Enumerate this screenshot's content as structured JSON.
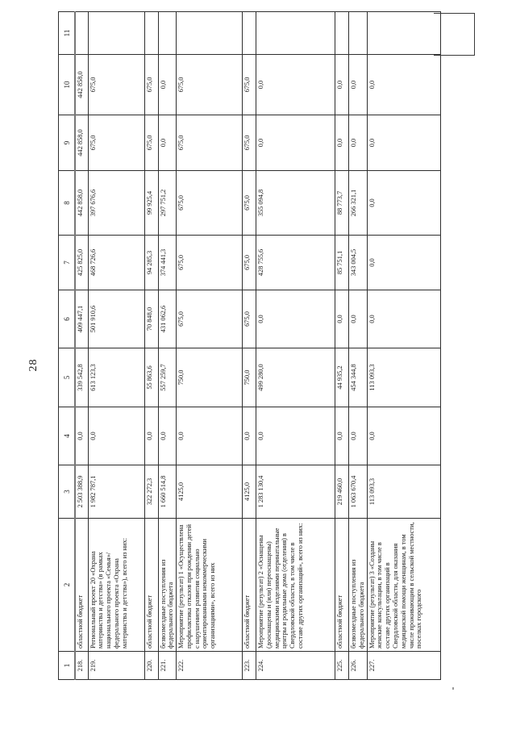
{
  "page": {
    "number": "28"
  },
  "table": {
    "col_headers": [
      "1",
      "2",
      "3",
      "4",
      "5",
      "6",
      "7",
      "8",
      "9",
      "10",
      "11"
    ],
    "rows": [
      {
        "num": "218.",
        "name": "областной бюджет",
        "v": [
          "2 503 388,9",
          "0,0",
          "339 542,8",
          "409 447,1",
          "425 825,0",
          "442 858,0",
          "442 858,0",
          "442 858,0",
          ""
        ]
      },
      {
        "num": "219.",
        "name": "Региональный проект 20 «Охрана материнства и детства» (в рамках национального проекта «Семья»/федерального проекта «Охрана материнства и детства»), всего из них:",
        "v": [
          "1 982 787,1",
          "0,0",
          "613 123,3",
          "501 910,6",
          "468 726,6",
          "397 676,6",
          "675,0",
          "675,0",
          ""
        ]
      },
      {
        "num": "220.",
        "name": "областной бюджет",
        "v": [
          "322 272,3",
          "0,0",
          "55 863,6",
          "70 848,0",
          "94 285,3",
          "99 925,4",
          "675,0",
          "675,0",
          ""
        ]
      },
      {
        "num": "221.",
        "name": "безвозмездные поступления из федерального бюджета",
        "v": [
          "1 660 514,8",
          "0,0",
          "557 259,7",
          "431 062,6",
          "374 441,3",
          "297 751,2",
          "0,0",
          "0,0",
          ""
        ]
      },
      {
        "num": "222.",
        "name": "Мероприятие (результат) 1 «Осуществлена профилактика отказов при рождении детей с нарушением развития социально ориентированными некоммерческими организациями», всего из них",
        "v": [
          "4125,0",
          "0,0",
          "750,0",
          "675,0",
          "675,0",
          "675,0",
          "675,0",
          "675,0",
          ""
        ]
      },
      {
        "num": "223.",
        "name": "областной бюджет",
        "v": [
          "4125,0",
          "0,0",
          "750,0",
          "675,0",
          "675,0",
          "675,0",
          "675,0",
          "675,0",
          ""
        ]
      },
      {
        "num": "224.",
        "name": "Мероприятие (результат) 2 «Оснащены (дооснащены и (или) переоснащены) медицинскими изделиями перинатальные центры и родильные дома (отделения) в Свердловской области, в том числе в составе других организаций», всего из них:",
        "v": [
          "1 283 130,4",
          "0,0",
          "499 280,0",
          "0,0",
          "428 755,6",
          "355 094,8",
          "0,0",
          "0,0",
          ""
        ]
      },
      {
        "num": "225.",
        "name": "областной бюджет",
        "v": [
          "219 460,0",
          "0,0",
          "44 935,2",
          "0,0",
          "85 751,1",
          "88 773,7",
          "0,0",
          "0,0",
          ""
        ]
      },
      {
        "num": "226.",
        "name": "безвозмездные поступления из федерального бюджета",
        "v": [
          "1 063 670,4",
          "0,0",
          "454 344,8",
          "0,0",
          "343 004,5",
          "266 321,1",
          "0,0",
          "0,0",
          ""
        ]
      },
      {
        "num": "227.",
        "name": "Мероприятие (результат) 3 «Созданы женские консультации, в том числе в составе других организаций в Свердловской области, для оказания медицинской помощи женщинам, в том числе проживающим в сельской местности, поселках городского",
        "v": [
          "113 093,3",
          "0,0",
          "113 093,3",
          "0,0",
          "0,0",
          "0,0",
          "0,0",
          "0,0",
          ""
        ]
      }
    ]
  }
}
